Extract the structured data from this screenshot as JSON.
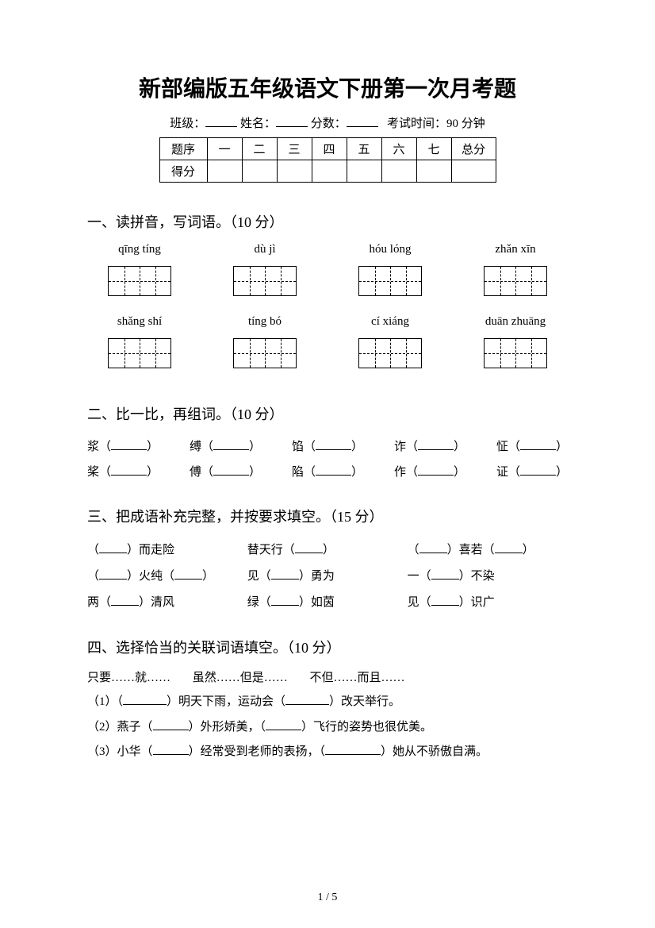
{
  "title": "新部编版五年级语文下册第一次月考题",
  "info": {
    "class_label": "班级：",
    "name_label": "姓名：",
    "score_label": "分数：",
    "time_label": "考试时间：90 分钟"
  },
  "score_table": {
    "header": [
      "题序",
      "一",
      "二",
      "三",
      "四",
      "五",
      "六",
      "七",
      "总分"
    ],
    "row_label": "得分"
  },
  "q1": {
    "heading": "一、读拼音，写词语。（10 分）",
    "row1": [
      "qīng tíng",
      "dù jì",
      "hóu lóng",
      "zhǎn xīn"
    ],
    "row2": [
      "shǎng shí",
      "tíng bó",
      "cí xiáng",
      "duān zhuāng"
    ]
  },
  "q2": {
    "heading": "二、比一比，再组词。（10 分）",
    "pairs": [
      [
        "浆",
        "桨"
      ],
      [
        "缚",
        "傅"
      ],
      [
        "馅",
        "陷"
      ],
      [
        "诈",
        "作"
      ],
      [
        "怔",
        "证"
      ]
    ]
  },
  "q3": {
    "heading": "三、把成语补充完整，并按要求填空。（15 分）",
    "items": [
      {
        "pre": "（",
        "mid": "）而走险",
        "post": ""
      },
      {
        "pre": "替天行（",
        "mid": "）",
        "post": ""
      },
      {
        "pre": "（",
        "mid": "）喜若（",
        "post": "）"
      },
      {
        "pre": "（",
        "mid": "）火纯（",
        "post": "）"
      },
      {
        "pre": "见（",
        "mid": "）勇为",
        "post": ""
      },
      {
        "pre": "一（",
        "mid": "）不染",
        "post": ""
      },
      {
        "pre": "两（",
        "mid": "）清风",
        "post": ""
      },
      {
        "pre": "绿（",
        "mid": "）如茵",
        "post": ""
      },
      {
        "pre": "见（",
        "mid": "）识广",
        "post": ""
      }
    ],
    "render": [
      [
        "（____）而走险",
        "替天行（____）",
        "（____）喜若（____）"
      ],
      [
        "（____）火纯（____）",
        "见（____）勇为",
        "一（____）不染"
      ],
      [
        "两（____）清风",
        "绿（____）如茵",
        "见（____）识广"
      ]
    ]
  },
  "q4": {
    "heading": "四、选择恰当的关联词语填空。（10 分）",
    "options": [
      "只要……就……",
      "虽然……但是……",
      "不但……而且……"
    ],
    "lines": [
      "（1）（_______）明天下雨，运动会（_______）改天举行。",
      "（2）燕子（______）外形娇美，（______）飞行的姿势也很优美。",
      "（3）小华（______）经常受到老师的表扬，（________）她从不骄傲自满。"
    ]
  },
  "footer": "1 / 5"
}
